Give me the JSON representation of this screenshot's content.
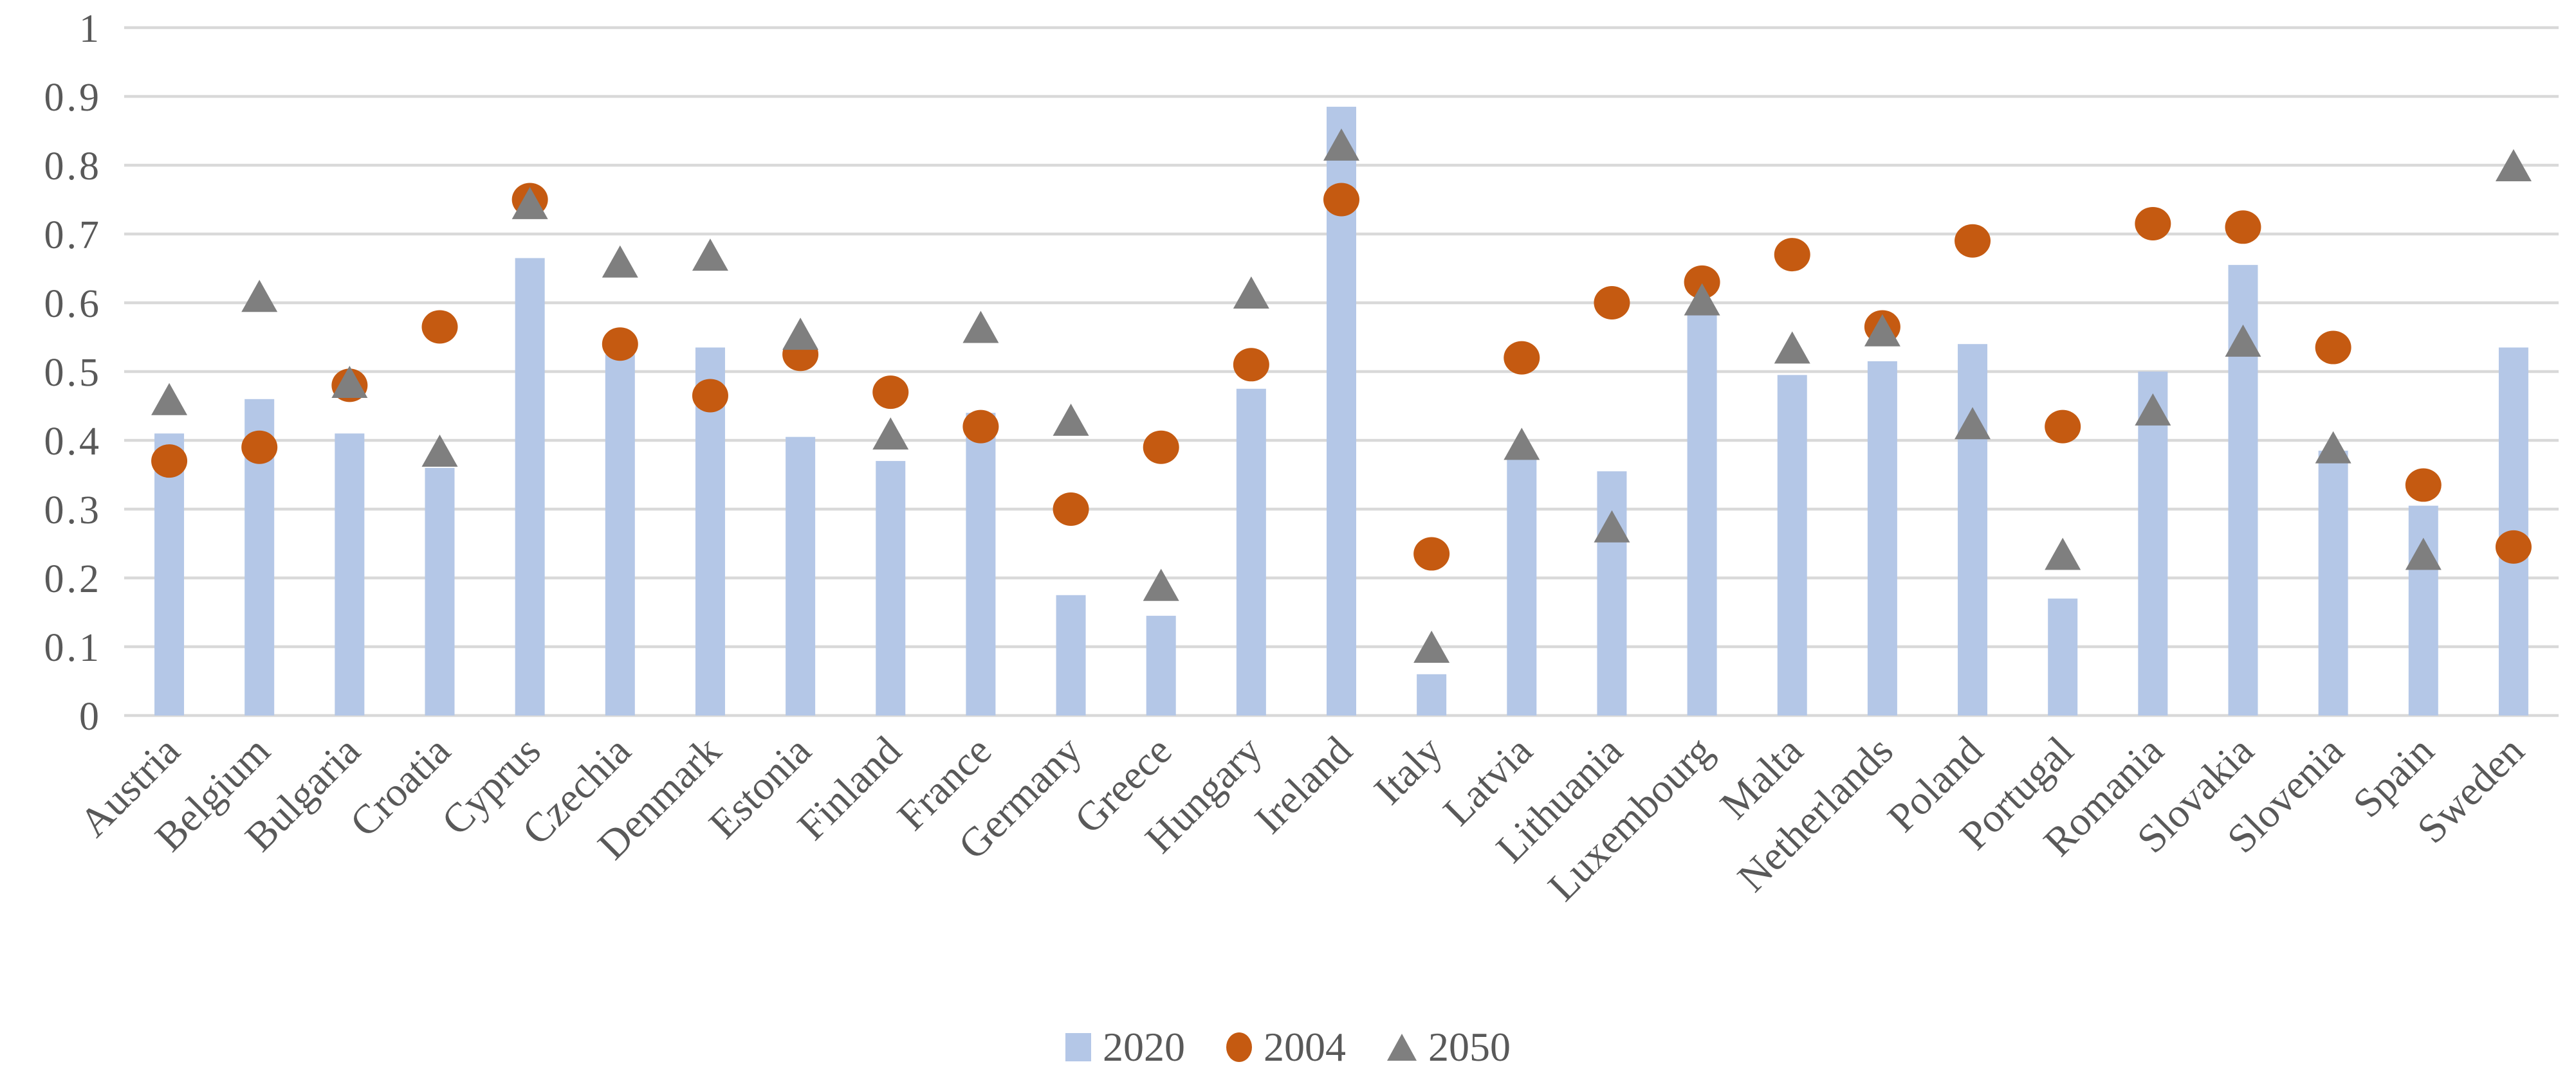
{
  "chart_data": {
    "type": "bar",
    "title": "",
    "xlabel": "",
    "ylabel": "",
    "categories": [
      "Austria",
      "Belgium",
      "Bulgaria",
      "Croatia",
      "Cyprus",
      "Czechia",
      "Denmark",
      "Estonia",
      "Finland",
      "France",
      "Germany",
      "Greece",
      "Hungary",
      "Ireland",
      "Italy",
      "Latvia",
      "Lithuania",
      "Luxembourg",
      "Malta",
      "Netherlands",
      "Poland",
      "Portugal",
      "Romania",
      "Slovakia",
      "Slovenia",
      "Spain",
      "Sweden"
    ],
    "series": [
      {
        "name": "2020",
        "marker": "bar",
        "color": "#B4C7E7",
        "values": [
          0.41,
          0.46,
          0.41,
          0.36,
          0.665,
          0.525,
          0.535,
          0.405,
          0.37,
          0.44,
          0.175,
          0.145,
          0.475,
          0.885,
          0.06,
          0.38,
          0.355,
          0.585,
          0.495,
          0.515,
          0.54,
          0.17,
          0.5,
          0.655,
          0.385,
          0.305,
          0.535
        ]
      },
      {
        "name": "2004",
        "marker": "circle",
        "color": "#C55A11",
        "values": [
          0.37,
          0.39,
          0.48,
          0.565,
          0.75,
          0.54,
          0.465,
          0.525,
          0.47,
          0.42,
          0.3,
          0.39,
          0.51,
          0.75,
          0.235,
          0.52,
          0.6,
          0.63,
          0.67,
          0.565,
          0.69,
          0.42,
          0.715,
          0.71,
          0.535,
          0.335,
          0.245
        ]
      },
      {
        "name": "2050",
        "marker": "triangle",
        "color": "#7F7F7F",
        "values": [
          0.46,
          0.61,
          0.485,
          0.385,
          0.745,
          0.66,
          0.67,
          0.555,
          0.41,
          0.565,
          0.43,
          0.19,
          0.615,
          0.83,
          0.1,
          0.395,
          0.275,
          0.605,
          0.535,
          0.56,
          0.425,
          0.235,
          0.445,
          0.545,
          0.39,
          0.235,
          0.8
        ]
      }
    ],
    "ylim": [
      0,
      1
    ],
    "yticks": [
      {
        "label": "0",
        "value": 0
      },
      {
        "label": "0.1",
        "value": 0.1
      },
      {
        "label": "0.2",
        "value": 0.2
      },
      {
        "label": "0.3",
        "value": 0.3
      },
      {
        "label": "0.4",
        "value": 0.4
      },
      {
        "label": "0.5",
        "value": 0.5
      },
      {
        "label": "0.6",
        "value": 0.6
      },
      {
        "label": "0.7",
        "value": 0.7
      },
      {
        "label": "0.8",
        "value": 0.8
      },
      {
        "label": "0.9",
        "value": 0.9
      },
      {
        "label": "1",
        "value": 1
      }
    ],
    "grid": "horizontal",
    "legend_position": "bottom"
  },
  "styles": {
    "background": "#FFFFFF",
    "gridline": "#D9D9D9",
    "axis_text_color": "#595959",
    "bar_color": "#B4C7E7",
    "circle_color": "#C55A11",
    "triangle_color": "#7F7F7F"
  }
}
